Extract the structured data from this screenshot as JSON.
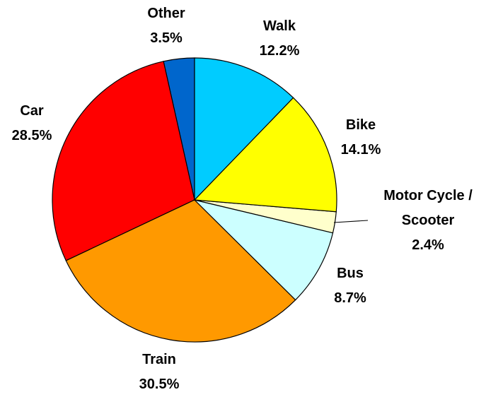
{
  "chart_data": {
    "type": "pie",
    "categories": [
      "Walk",
      "Bike",
      "Motor Cycle / Scooter",
      "Bus",
      "Train",
      "Car",
      "Other"
    ],
    "values": [
      12.2,
      14.1,
      2.4,
      8.7,
      30.5,
      28.5,
      3.5
    ],
    "value_labels": [
      "12.2%",
      "14.1%",
      "2.4%",
      "8.7%",
      "30.5%",
      "28.5%",
      "3.5%"
    ],
    "colors": [
      "#00ccff",
      "#ffff00",
      "#ffffcc",
      "#ccffff",
      "#ff9900",
      "#ff0000",
      "#0066cc"
    ]
  }
}
